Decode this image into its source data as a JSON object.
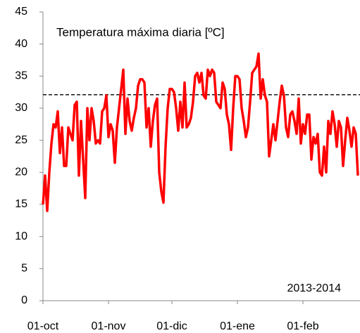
{
  "chart_data": {
    "type": "line",
    "title": "Temperatura máxima diaria [ºC]",
    "annotation": "2013-2014",
    "series": [
      {
        "name": "Temperatura máxima",
        "color": "#ff0000",
        "values": [
          15,
          19.5,
          14,
          20,
          24.5,
          27.5,
          27,
          29.5,
          23,
          27,
          21,
          21,
          27,
          26,
          25,
          30.5,
          31,
          19.5,
          28,
          22,
          16,
          30,
          25,
          30,
          28,
          24.5,
          25,
          24.5,
          29.5,
          30,
          32,
          25.5,
          27.5,
          26.5,
          21.5,
          27,
          30,
          33,
          36,
          26,
          31.5,
          28,
          26.5,
          28.5,
          30,
          33.5,
          34.5,
          34.5,
          34,
          27,
          30,
          24,
          28,
          30.5,
          31.5,
          20,
          17,
          15.3,
          24,
          30,
          33,
          33,
          32.5,
          30,
          26.5,
          31,
          27,
          34,
          27,
          27.5,
          28.5,
          31,
          35,
          35.5,
          34,
          35.5,
          32,
          31.5,
          36,
          35,
          36,
          35.5,
          31,
          30.5,
          30,
          34,
          33,
          29,
          27.5,
          23.5,
          30,
          35,
          35,
          34.5,
          30,
          28,
          25.5,
          27,
          31,
          35.5,
          36,
          36.5,
          38.5,
          31.5,
          34.5,
          32,
          31,
          22.5,
          25,
          27.5,
          25,
          28,
          31,
          33.5,
          32,
          27,
          25.5,
          29,
          29.5,
          28,
          26,
          31.5,
          24.5,
          27.5,
          26,
          29,
          29,
          22,
          25.5,
          24.5,
          26,
          20,
          19.5,
          24,
          20,
          28,
          26,
          29.5,
          27.5,
          24,
          28,
          27,
          21,
          25,
          28.5,
          26.5,
          24,
          27,
          26,
          19.5
        ]
      }
    ],
    "reference_line": {
      "value": 32.1,
      "color": "#000000",
      "dashed": true
    },
    "xlim": [
      0,
      150
    ],
    "xticks": [
      {
        "value": 0,
        "label": "01-oct"
      },
      {
        "value": 31,
        "label": "01-nov"
      },
      {
        "value": 61,
        "label": "01-dic"
      },
      {
        "value": 92,
        "label": "01-ene"
      },
      {
        "value": 123,
        "label": "01-feb"
      }
    ],
    "ylim": [
      0,
      45
    ],
    "yticks": [
      0,
      5,
      10,
      15,
      20,
      25,
      30,
      35,
      40,
      45
    ],
    "grid": false
  }
}
